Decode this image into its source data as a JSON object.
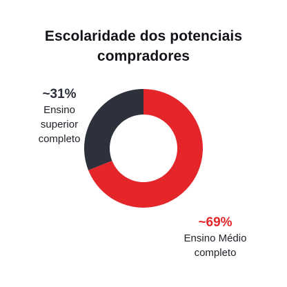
{
  "title": {
    "line1": "Escolaridade dos potenciais",
    "line2": "compradores"
  },
  "chart_data": {
    "type": "pie",
    "variant": "donut",
    "title": "Escolaridade dos potenciais compradores",
    "slices": [
      {
        "name": "Ensino Médio completo",
        "value": 69,
        "display": "~69%",
        "label_lines": [
          "Ensino Médio",
          "completo"
        ],
        "color": "#e4262a"
      },
      {
        "name": "Ensino superior completo",
        "value": 31,
        "display": "~31%",
        "label_lines": [
          "Ensino",
          "superior",
          "completo"
        ],
        "color": "#2d313c"
      }
    ],
    "legend": "none",
    "labels_placement": "outside"
  }
}
